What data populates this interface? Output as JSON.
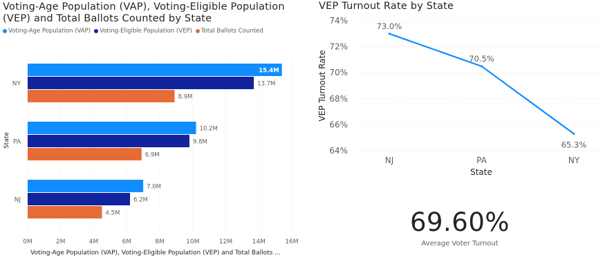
{
  "bar_chart": {
    "title": "Voting-Age Population (VAP), Voting-Eligible Population (VEP) and Total Ballots Counted by State",
    "legend": [
      {
        "label": "Voting-Age Population (VAP)",
        "color": "#118DFF"
      },
      {
        "label": "Voting-Eligible Population (VEP)",
        "color": "#12239E"
      },
      {
        "label": "Total Ballots Counted",
        "color": "#E66C37"
      }
    ],
    "ylabel": "State",
    "xlabel": "Voting-Age Population (VAP), Voting-Eligible Population (VEP) and Total Ballots ..."
  },
  "line_chart": {
    "title": "VEP Turnout Rate by State",
    "ylabel": "VEP Turnout Rate",
    "xlabel": "State"
  },
  "kpi_card": {
    "value": "69.60%",
    "label": "Average Voter Turnout"
  },
  "chart_data": [
    {
      "type": "bar",
      "orientation": "horizontal",
      "title": "Voting-Age Population (VAP), Voting-Eligible Population (VEP) and Total Ballots Counted by State",
      "categories": [
        "NY",
        "PA",
        "NJ"
      ],
      "series": [
        {
          "name": "Voting-Age Population (VAP)",
          "color": "#118DFF",
          "values": [
            15.4,
            10.2,
            7.0
          ],
          "labels": [
            "15.4M",
            "10.2M",
            "7.0M"
          ]
        },
        {
          "name": "Voting-Eligible Population (VEP)",
          "color": "#12239E",
          "values": [
            13.7,
            9.8,
            6.2
          ],
          "labels": [
            "13.7M",
            "9.8M",
            "6.2M"
          ]
        },
        {
          "name": "Total Ballots Counted",
          "color": "#E66C37",
          "values": [
            8.9,
            6.9,
            4.5
          ],
          "labels": [
            "8.9M",
            "6.9M",
            "4.5M"
          ]
        }
      ],
      "xlim": [
        0,
        16
      ],
      "xticks": [
        0,
        2,
        4,
        6,
        8,
        10,
        12,
        14,
        16
      ],
      "xtick_labels": [
        "0M",
        "2M",
        "4M",
        "6M",
        "8M",
        "10M",
        "12M",
        "14M",
        "16M"
      ],
      "xlabel": "Voting-Age Population (VAP), Voting-Eligible Population (VEP) and Total Ballots ...",
      "ylabel": "State",
      "grid": true,
      "legend_position": "top-left"
    },
    {
      "type": "line",
      "title": "VEP Turnout Rate by State",
      "categories": [
        "NJ",
        "PA",
        "NY"
      ],
      "series": [
        {
          "name": "VEP Turnout Rate",
          "color": "#118DFF",
          "values": [
            73.0,
            70.5,
            65.3
          ],
          "labels": [
            "73.0%",
            "70.5%",
            "65.3%"
          ]
        }
      ],
      "ylim": [
        64,
        74
      ],
      "yticks": [
        64,
        66,
        68,
        70,
        72,
        74
      ],
      "ytick_labels": [
        "64%",
        "66%",
        "68%",
        "70%",
        "72%",
        "74%"
      ],
      "xlabel": "State",
      "ylabel": "VEP Turnout Rate",
      "grid": true
    }
  ]
}
